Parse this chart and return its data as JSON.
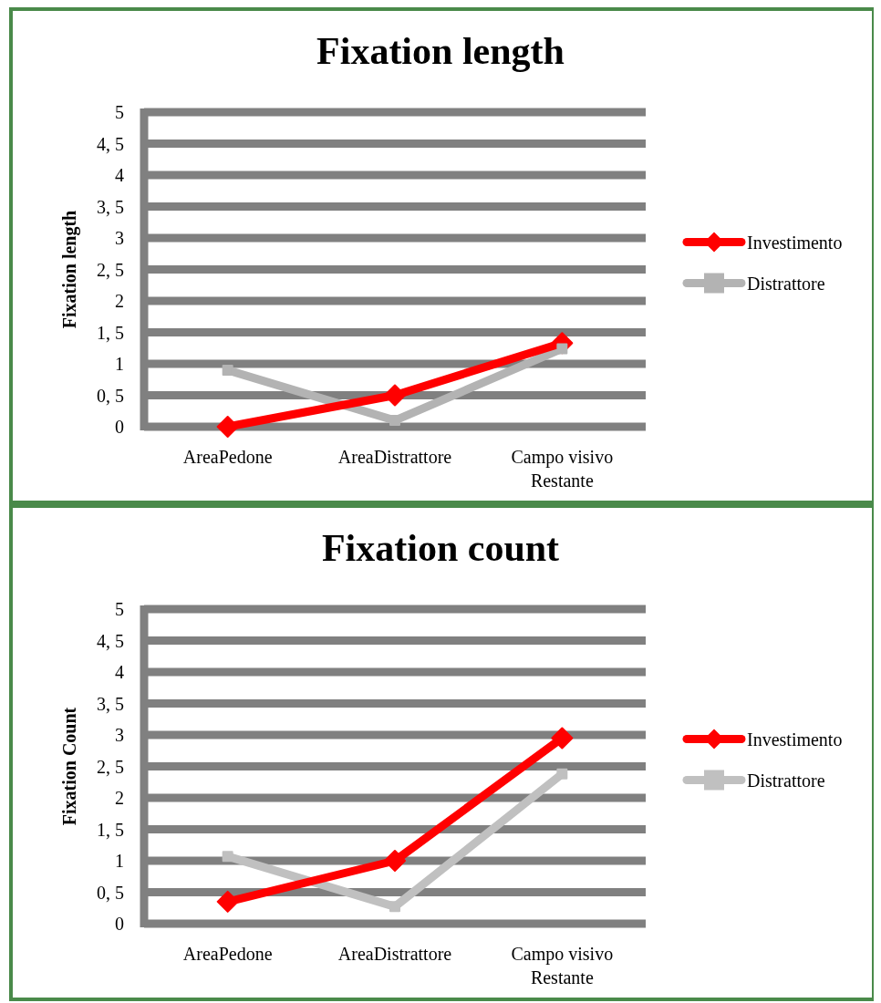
{
  "chart_data": [
    {
      "type": "line",
      "title": "Fixation length",
      "ylabel": "Fixation length",
      "categories": [
        "AreaPedone",
        "AreaDistrattore",
        "Campo visivo Restante"
      ],
      "ylim": [
        0,
        5
      ],
      "yticks": [
        0,
        {
          "value": 0.5,
          "label": "0, 5"
        },
        1,
        {
          "value": 1.5,
          "label": "1, 5"
        },
        2,
        {
          "value": 2.5,
          "label": "2, 5"
        },
        3,
        {
          "value": 3.5,
          "label": "3, 5"
        },
        4,
        {
          "value": 4.5,
          "label": "4, 5"
        },
        5
      ],
      "grid": "y",
      "legend": "right",
      "series": [
        {
          "name": "Investimento",
          "color": "#ff0000",
          "marker": "diamond",
          "values": [
            0,
            0.5,
            1.33
          ]
        },
        {
          "name": "Distrattore",
          "color": "#b3b3b3",
          "marker": "square",
          "values": [
            0.9,
            0.1,
            1.24
          ]
        }
      ]
    },
    {
      "type": "line",
      "title": "Fixation count",
      "ylabel": "Fixation Count",
      "categories": [
        "AreaPedone",
        "AreaDistrattore",
        "Campo visivo Restante"
      ],
      "ylim": [
        0,
        5
      ],
      "yticks": [
        0,
        {
          "value": 0.5,
          "label": "0, 5"
        },
        1,
        {
          "value": 1.5,
          "label": "1, 5"
        },
        2,
        {
          "value": 2.5,
          "label": "2, 5"
        },
        3,
        {
          "value": 3.5,
          "label": "3, 5"
        },
        4,
        {
          "value": 4.5,
          "label": "4, 5"
        },
        5
      ],
      "grid": "y",
      "legend": "right",
      "series": [
        {
          "name": "Investimento",
          "color": "#ff0000",
          "marker": "diamond",
          "values": [
            0.35,
            1,
            2.95
          ]
        },
        {
          "name": "Distrattore",
          "color": "#c0c0c0",
          "marker": "square",
          "values": [
            1.07,
            0.27,
            2.38
          ]
        }
      ]
    }
  ]
}
